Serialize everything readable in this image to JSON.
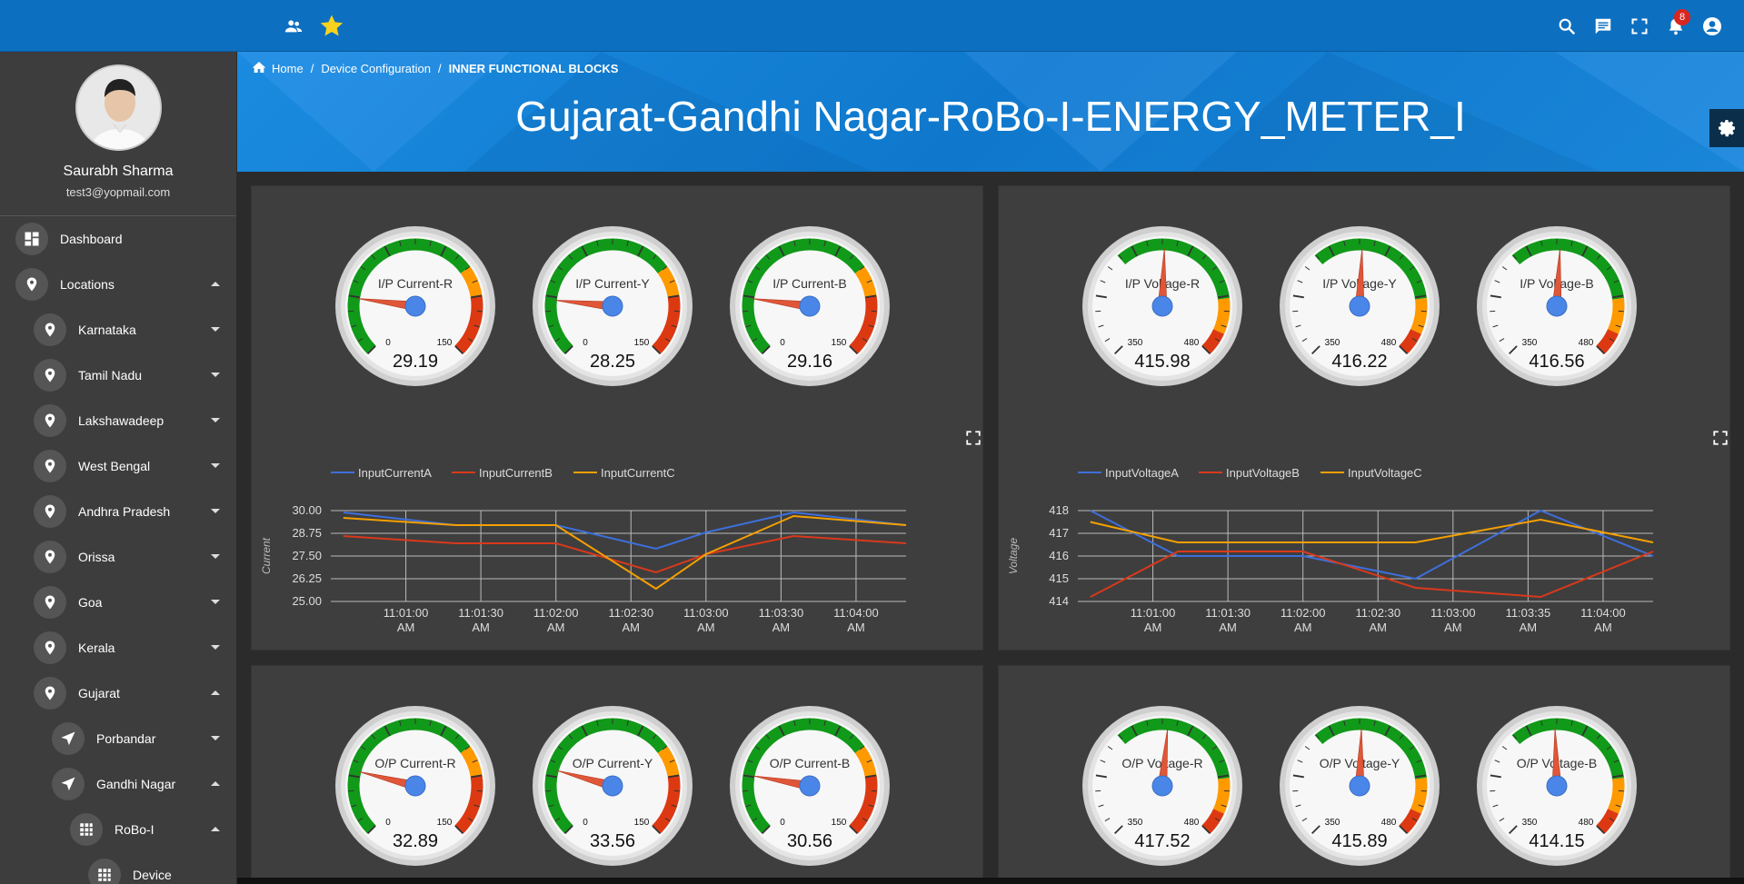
{
  "colors": {
    "topbar": "#0d6fc0",
    "accent": "#1a86d8",
    "panel": "#3e3e3e",
    "sidebar": "#3d3d3d",
    "series_a": "#3d6fdc",
    "series_b": "#d9391b",
    "series_c": "#f5a000",
    "gauge_green": "#119919",
    "gauge_orange": "#ff9900",
    "gauge_red": "#dc3912"
  },
  "topbar": {
    "icons": [
      "users-icon",
      "star-icon",
      "search-icon",
      "chat-icon",
      "fullscreen-icon",
      "bell-icon",
      "account-icon"
    ],
    "notification_count": "8"
  },
  "profile": {
    "name": "Saurabh Sharma",
    "email": "test3@yopmail.com"
  },
  "sidebar": {
    "items": [
      {
        "label": "Dashboard",
        "icon": "dashboard-icon",
        "caret": "none"
      },
      {
        "label": "Locations",
        "icon": "location-pin-icon",
        "caret": "up"
      },
      {
        "label": "Karnataka",
        "icon": "location-pin-icon",
        "caret": "down"
      },
      {
        "label": "Tamil Nadu",
        "icon": "location-pin-icon",
        "caret": "down"
      },
      {
        "label": "Lakshawadeep",
        "icon": "location-pin-icon",
        "caret": "down"
      },
      {
        "label": "West Bengal",
        "icon": "location-pin-icon",
        "caret": "down"
      },
      {
        "label": "Andhra Pradesh",
        "icon": "location-pin-icon",
        "caret": "down"
      },
      {
        "label": "Orissa",
        "icon": "location-pin-icon",
        "caret": "down"
      },
      {
        "label": "Goa",
        "icon": "location-pin-icon",
        "caret": "down"
      },
      {
        "label": "Kerala",
        "icon": "location-pin-icon",
        "caret": "down"
      },
      {
        "label": "Gujarat",
        "icon": "location-pin-icon",
        "caret": "up"
      },
      {
        "label": "Porbandar",
        "icon": "navigation-arrow-icon",
        "caret": "down"
      },
      {
        "label": "Gandhi Nagar",
        "icon": "navigation-arrow-icon",
        "caret": "up"
      },
      {
        "label": "RoBo-I",
        "icon": "grid-icon",
        "caret": "up"
      },
      {
        "label": "Device",
        "icon": "grid-icon",
        "caret": "none"
      }
    ]
  },
  "breadcrumb": {
    "home": "Home",
    "sep1": "/",
    "level1": "Device Configuration",
    "sep2": "/",
    "level2": "INNER FUNCTIONAL BLOCKS"
  },
  "page": {
    "title": "Gujarat-Gandhi Nagar-RoBo-I-ENERGY_METER_I"
  },
  "gauges": {
    "input_current": [
      {
        "title": "I/P Current-R",
        "value": "29.19",
        "min": "0",
        "max": "150"
      },
      {
        "title": "I/P Current-Y",
        "value": "28.25",
        "min": "0",
        "max": "150"
      },
      {
        "title": "I/P Current-B",
        "value": "29.16",
        "min": "0",
        "max": "150"
      }
    ],
    "input_voltage": [
      {
        "title": "I/P Voltage-R",
        "value": "415.98",
        "min": "350",
        "max": "480"
      },
      {
        "title": "I/P Voltage-Y",
        "value": "416.22",
        "min": "350",
        "max": "480"
      },
      {
        "title": "I/P Voltage-B",
        "value": "416.56",
        "min": "350",
        "max": "480"
      }
    ],
    "output_current": [
      {
        "title": "O/P Current-R",
        "value": "32.89",
        "min": "0",
        "max": "150"
      },
      {
        "title": "O/P Current-Y",
        "value": "33.56",
        "min": "0",
        "max": "150"
      },
      {
        "title": "O/P Current-B",
        "value": "30.56",
        "min": "0",
        "max": "150"
      }
    ],
    "output_voltage": [
      {
        "title": "O/P Voltage-R",
        "value": "417.52",
        "min": "350",
        "max": "480"
      },
      {
        "title": "O/P Voltage-Y",
        "value": "415.89",
        "min": "350",
        "max": "480"
      },
      {
        "title": "O/P Voltage-B",
        "value": "414.15",
        "min": "350",
        "max": "480"
      }
    ]
  },
  "chart_data": [
    {
      "type": "line",
      "title": "",
      "xlabel": "",
      "ylabel": "Current",
      "ylim": [
        25,
        30
      ],
      "yticks": [
        "30.00",
        "28.75",
        "27.50",
        "26.25",
        "25.00"
      ],
      "xticks": [
        [
          "11:01:00",
          "AM"
        ],
        [
          "11:01:30",
          "AM"
        ],
        [
          "11:02:00",
          "AM"
        ],
        [
          "11:02:30",
          "AM"
        ],
        [
          "11:03:00",
          "AM"
        ],
        [
          "11:03:30",
          "AM"
        ],
        [
          "11:04:00",
          "AM"
        ]
      ],
      "x": [
        "11:00:35",
        "11:01:20",
        "11:02:00",
        "11:02:40",
        "11:03:00",
        "11:03:35",
        "11:04:20"
      ],
      "grid": true,
      "legend": "top-left",
      "series": [
        {
          "name": "InputCurrentA",
          "values": [
            29.9,
            29.2,
            29.2,
            27.9,
            28.8,
            29.9,
            29.2
          ]
        },
        {
          "name": "InputCurrentB",
          "values": [
            28.6,
            28.2,
            28.2,
            26.6,
            27.6,
            28.6,
            28.2
          ]
        },
        {
          "name": "InputCurrentC",
          "values": [
            29.6,
            29.2,
            29.2,
            25.7,
            27.6,
            29.7,
            29.2
          ]
        }
      ]
    },
    {
      "type": "line",
      "title": "",
      "xlabel": "",
      "ylabel": "Voltage",
      "ylim": [
        414,
        418
      ],
      "yticks": [
        "418",
        "417",
        "416",
        "415",
        "414"
      ],
      "xticks": [
        [
          "11:01:00",
          "AM"
        ],
        [
          "11:01:30",
          "AM"
        ],
        [
          "11:02:00",
          "AM"
        ],
        [
          "11:02:30",
          "AM"
        ],
        [
          "11:03:00",
          "AM"
        ],
        [
          "11:03:35",
          "AM"
        ],
        [
          "11:04:00",
          "AM"
        ]
      ],
      "x": [
        "11:00:35",
        "11:01:10",
        "11:02:00",
        "11:02:45",
        "11:03:35",
        "11:04:20"
      ],
      "grid": true,
      "legend": "top-left",
      "series": [
        {
          "name": "InputVoltageA",
          "values": [
            418.0,
            416.0,
            416.0,
            415.0,
            418.0,
            416.0
          ]
        },
        {
          "name": "InputVoltageB",
          "values": [
            414.2,
            416.2,
            416.2,
            414.6,
            414.2,
            416.2
          ]
        },
        {
          "name": "InputVoltageC",
          "values": [
            417.5,
            416.6,
            416.6,
            416.6,
            417.6,
            416.6
          ]
        }
      ]
    }
  ]
}
